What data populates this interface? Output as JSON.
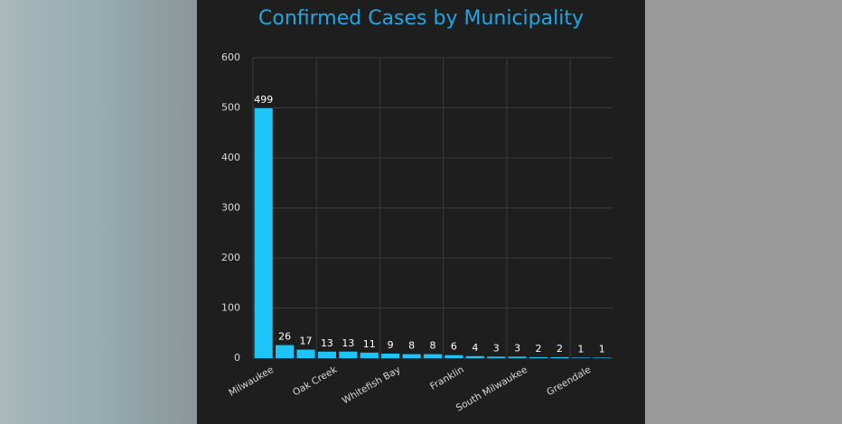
{
  "chart_data": {
    "type": "bar",
    "title": "Confirmed Cases by Municipality",
    "categories": [
      "Milwaukee",
      null,
      null,
      "Oak Creek",
      null,
      null,
      "Whitefish Bay",
      null,
      null,
      "Franklin",
      null,
      null,
      "South Milwaukee",
      null,
      null,
      "Greendale",
      null
    ],
    "values": [
      499,
      26,
      17,
      13,
      13,
      11,
      9,
      8,
      8,
      6,
      4,
      3,
      3,
      2,
      2,
      1,
      1
    ],
    "color": "#1cc4f7",
    "ylim": [
      0,
      600
    ],
    "yticks": [
      0,
      100,
      200,
      300,
      400,
      500,
      600
    ],
    "grid": true
  }
}
